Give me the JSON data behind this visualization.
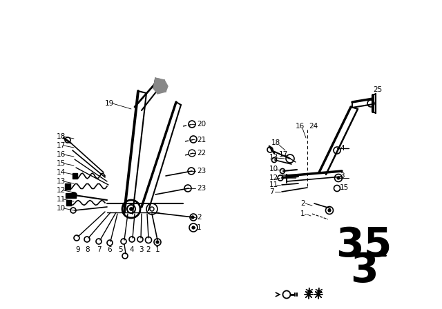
{
  "bg_color": "#ffffff",
  "line_color": "#000000",
  "part_num_top": "35",
  "part_num_bot": "3",
  "part_num_fs": 42,
  "label_fs": 7.5
}
